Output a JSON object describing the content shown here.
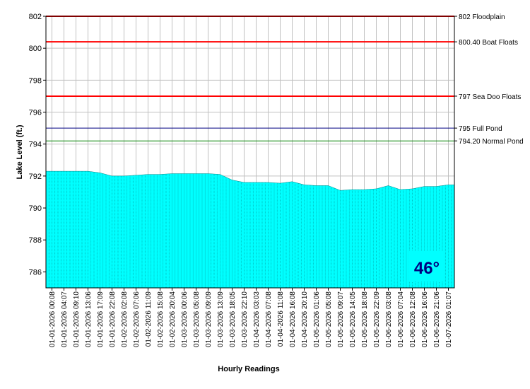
{
  "chart_data": {
    "type": "area",
    "xlabel": "Hourly Readings",
    "ylabel": "Lake Level (ft.)",
    "ylim": [
      785,
      802
    ],
    "y_ticks": [
      786,
      788,
      790,
      792,
      794,
      796,
      798,
      800,
      802
    ],
    "grid": true,
    "fill_color": "#00ffff",
    "x": [
      "01-01-2026 00:08",
      "01-01-2026 04:07",
      "01-01-2026 09:10",
      "01-01-2026 13:06",
      "01-01-2026 17:09",
      "01-01-2026 22:08",
      "01-02-2026 02:08",
      "01-02-2026 07:06",
      "01-02-2026 11:09",
      "01-02-2026 15:08",
      "01-02-2026 20:04",
      "01-03-2026 00:06",
      "01-03-2026 05:08",
      "01-03-2026 09:09",
      "01-03-2026 13:09",
      "01-03-2026 18:05",
      "01-03-2026 22:10",
      "01-04-2026 03:03",
      "01-04-2026 07:08",
      "01-04-2026 11:08",
      "01-04-2026 16:08",
      "01-04-2026 20:10",
      "01-05-2026 01:06",
      "01-05-2026 05:08",
      "01-05-2026 09:07",
      "01-05-2026 14:05",
      "01-05-2026 18:08",
      "01-05-2026 22:09",
      "01-06-2026 03:08",
      "01-06-2026 07:04",
      "01-06-2026 12:08",
      "01-06-2026 16:06",
      "01-06-2026 21:06",
      "01-07-2026 01:07"
    ],
    "values": [
      792.3,
      792.3,
      792.3,
      792.3,
      792.2,
      792.0,
      792.0,
      792.05,
      792.1,
      792.1,
      792.15,
      792.15,
      792.15,
      792.15,
      792.1,
      791.75,
      791.6,
      791.6,
      791.6,
      791.55,
      791.65,
      791.45,
      791.4,
      791.4,
      791.1,
      791.15,
      791.15,
      791.2,
      791.4,
      791.15,
      791.2,
      791.35,
      791.35,
      791.45
    ],
    "reference_lines": [
      {
        "value": 802,
        "label": "802 Floodplain",
        "color": "#ff0000"
      },
      {
        "value": 800.4,
        "label": "800.40 Boat Floats",
        "color": "#ff0000"
      },
      {
        "value": 797,
        "label": "797 Sea Doo Floats",
        "color": "#ff0000"
      },
      {
        "value": 795,
        "label": "795 Full Pond",
        "color": "#000080"
      },
      {
        "value": 794.2,
        "label": "794.20 Normal Pond",
        "color": "#008000"
      }
    ],
    "temperature_badge": {
      "text": "46°",
      "color": "#000080",
      "background": "#00ffff"
    }
  }
}
